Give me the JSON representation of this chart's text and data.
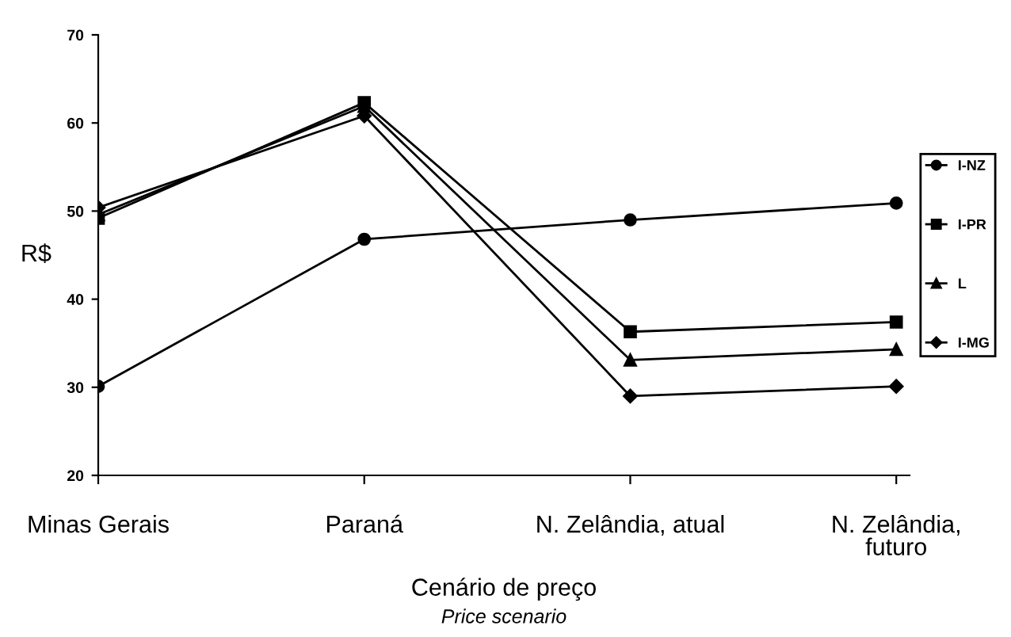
{
  "chart_data": {
    "type": "line",
    "categories": [
      "Minas Gerais",
      "Paraná",
      "N. Zelândia, atual",
      "N. Zelândia,\nfuturo"
    ],
    "series": [
      {
        "name": "I-NZ",
        "color": "#000000",
        "marker": "circle",
        "values": [
          30.1,
          46.8,
          49.0,
          50.9
        ]
      },
      {
        "name": "I-PR",
        "color": "#000000",
        "marker": "square",
        "values": [
          49.2,
          62.3,
          36.3,
          37.4
        ]
      },
      {
        "name": "L",
        "color": "#000000",
        "marker": "triangle",
        "values": [
          49.6,
          61.9,
          33.1,
          34.3
        ]
      },
      {
        "name": "I-MG",
        "color": "#000000",
        "marker": "diamond",
        "values": [
          50.4,
          60.8,
          29.0,
          30.1
        ]
      }
    ],
    "ylim": [
      20,
      70
    ],
    "yticks": [
      20,
      30,
      40,
      50,
      60,
      70
    ],
    "ylabel": "R$",
    "xlabel": "Cenário de preço",
    "annotations": [
      "Price scenario"
    ],
    "legend": "right",
    "grid": false,
    "line_style": "solid"
  }
}
